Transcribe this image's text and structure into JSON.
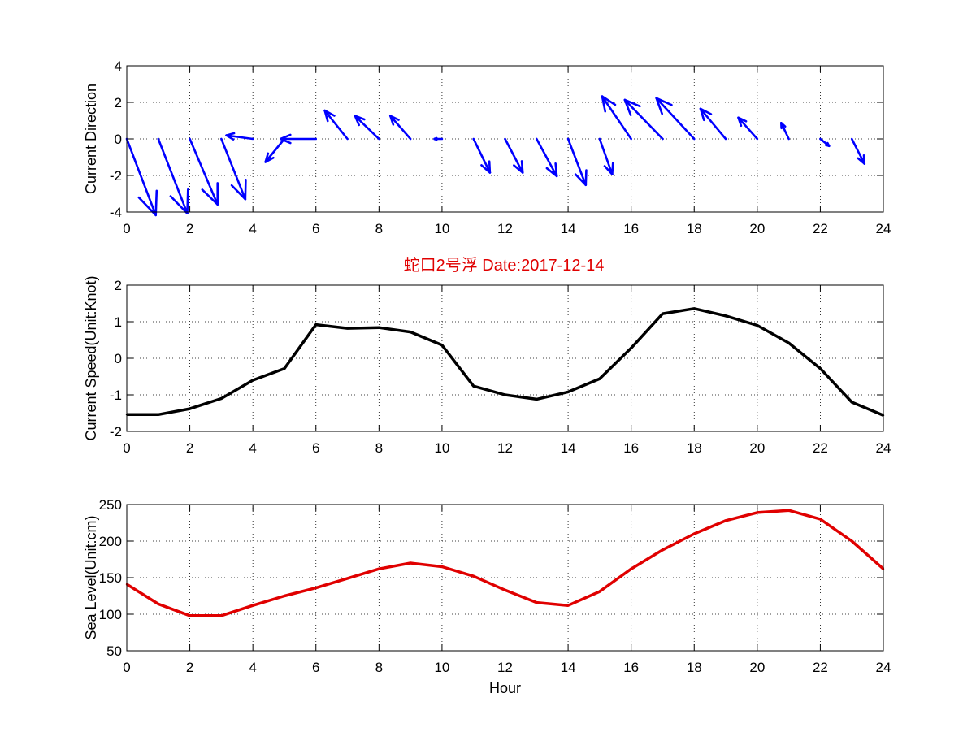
{
  "figure": {
    "title": "蛇口2号浮   Date:2017-12-14",
    "title_color": "#e00000"
  },
  "chart_data": [
    {
      "type": "quiver",
      "name": "current-direction",
      "ylabel": "Current Direction",
      "xlabel": "",
      "xlim": [
        0,
        24
      ],
      "ylim": [
        -4,
        4
      ],
      "xticks": [
        0,
        2,
        4,
        6,
        8,
        10,
        12,
        14,
        16,
        18,
        20,
        22,
        24
      ],
      "yticks": [
        4,
        2,
        0,
        -2,
        -4
      ],
      "grid": true,
      "color": "#0000ff",
      "x": [
        0,
        1,
        2,
        3,
        4,
        5,
        6,
        7,
        8,
        9,
        10,
        11,
        12,
        13,
        14,
        15,
        16,
        17,
        18,
        19,
        20,
        21,
        22,
        23
      ],
      "u": [
        2.3,
        2.3,
        2.2,
        1.9,
        -2.1,
        -1.5,
        -2.8,
        -1.8,
        -1.9,
        -1.6,
        -0.6,
        1.3,
        1.4,
        1.6,
        1.4,
        1.0,
        -2.3,
        -3.0,
        -3.0,
        -2.0,
        -1.5,
        -0.6,
        0.7,
        1.0
      ],
      "v": [
        -4.3,
        -4.2,
        -3.7,
        -3.4,
        0.2,
        -1.3,
        0.0,
        1.6,
        1.3,
        1.3,
        0.0,
        -1.9,
        -1.9,
        -2.1,
        -2.6,
        -2.0,
        2.4,
        2.2,
        2.3,
        1.7,
        1.2,
        0.9,
        -0.4,
        -1.4
      ]
    },
    {
      "type": "line",
      "name": "current-speed",
      "ylabel": "Current Speed(Unit:Knot)",
      "xlabel": "",
      "xlim": [
        0,
        24
      ],
      "ylim": [
        -2,
        2
      ],
      "xticks": [
        0,
        2,
        4,
        6,
        8,
        10,
        12,
        14,
        16,
        18,
        20,
        22,
        24
      ],
      "yticks": [
        2,
        1,
        0,
        -1,
        -2
      ],
      "grid": true,
      "color": "#000000",
      "x": [
        0,
        1,
        2,
        3,
        4,
        5,
        6,
        7,
        8,
        9,
        10,
        11,
        12,
        13,
        14,
        15,
        16,
        17,
        18,
        19,
        20,
        21,
        22,
        23,
        24
      ],
      "y": [
        -1.54,
        -1.54,
        -1.38,
        -1.1,
        -0.6,
        -0.28,
        0.92,
        0.82,
        0.84,
        0.72,
        0.36,
        -0.76,
        -1.0,
        -1.12,
        -0.92,
        -0.56,
        0.28,
        1.22,
        1.36,
        1.16,
        0.9,
        0.42,
        -0.28,
        -1.2,
        -1.56
      ]
    },
    {
      "type": "line",
      "name": "sea-level",
      "ylabel": "Sea Level(Unit:cm)",
      "xlabel": "Hour",
      "xlim": [
        0,
        24
      ],
      "ylim": [
        50,
        250
      ],
      "xticks": [
        0,
        2,
        4,
        6,
        8,
        10,
        12,
        14,
        16,
        18,
        20,
        22,
        24
      ],
      "yticks": [
        250,
        200,
        150,
        100,
        50
      ],
      "grid": true,
      "color": "#e00000",
      "x": [
        0,
        1,
        2,
        3,
        4,
        5,
        6,
        7,
        8,
        9,
        10,
        11,
        12,
        13,
        14,
        15,
        16,
        17,
        18,
        19,
        20,
        21,
        22,
        23,
        24
      ],
      "y": [
        141,
        114,
        98,
        98,
        112,
        125,
        136,
        149,
        162,
        170,
        165,
        152,
        133,
        116,
        112,
        131,
        162,
        188,
        210,
        228,
        239,
        242,
        230,
        200,
        162
      ]
    }
  ]
}
